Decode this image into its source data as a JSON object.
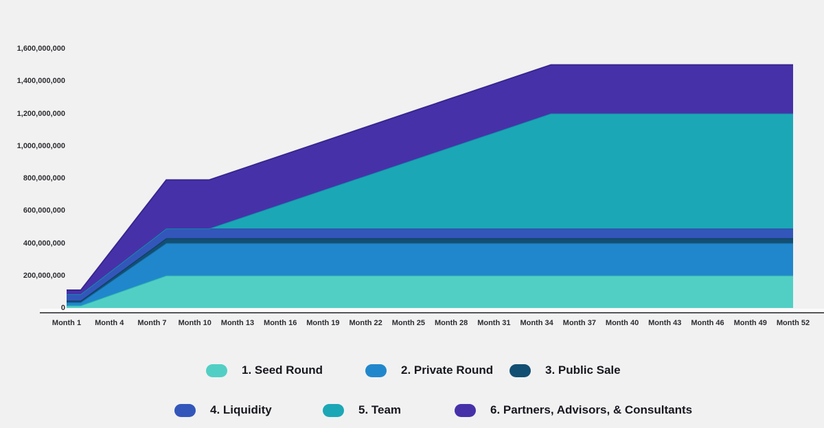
{
  "background_color": "#f1f1f2",
  "chart_data": {
    "type": "area",
    "stacked": true,
    "title": "",
    "xlabel": "",
    "ylabel": "",
    "x_unit": "month",
    "x_range": [
      1,
      52
    ],
    "ylim": [
      0,
      1600000000
    ],
    "grid": false,
    "legend_position": "bottom",
    "x_tick_months": [
      1,
      4,
      7,
      10,
      13,
      16,
      19,
      22,
      25,
      28,
      31,
      34,
      37,
      40,
      43,
      46,
      49,
      52
    ],
    "x_tick_labels": [
      "Month 1",
      "Month 4",
      "Month 7",
      "Month 10",
      "Month 13",
      "Month 16",
      "Month 19",
      "Month 22",
      "Month 25",
      "Month 28",
      "Month 31",
      "Month 34",
      "Month 37",
      "Month 40",
      "Month 43",
      "Month 46",
      "Month 49",
      "Month 52"
    ],
    "y_ticks": [
      {
        "value": 0,
        "label": "0"
      },
      {
        "value": 200000000,
        "label": "200,000,000"
      },
      {
        "value": 400000000,
        "label": "400,000,000"
      },
      {
        "value": 600000000,
        "label": "600,000,000"
      },
      {
        "value": 800000000,
        "label": "800,000,000"
      },
      {
        "value": 1000000000,
        "label": "1,000,000,000"
      },
      {
        "value": 1200000000,
        "label": "1,200,000,000"
      },
      {
        "value": 1400000000,
        "label": "1,400,000,000"
      },
      {
        "value": 1600000000,
        "label": "1,600,000,000"
      }
    ],
    "total_supply": 1500000000,
    "series": [
      {
        "name": "1. Seed Round",
        "total": 200000000,
        "color": "#52cfc4",
        "edge_color": "#2fb9ad",
        "points": [
          [
            1,
            15000000
          ],
          [
            2,
            15000000
          ],
          [
            8,
            200000000
          ],
          [
            52,
            200000000
          ]
        ]
      },
      {
        "name": "2. Private Round",
        "total": 200000000,
        "color": "#2187cc",
        "edge_color": "#1871b2",
        "points": [
          [
            1,
            20000000
          ],
          [
            2,
            20000000
          ],
          [
            8,
            200000000
          ],
          [
            52,
            200000000
          ]
        ]
      },
      {
        "name": "3. Public Sale",
        "total": 30000000,
        "color": "#134f72",
        "edge_color": "#0c3c59",
        "points": [
          [
            1,
            10000000
          ],
          [
            2,
            10000000
          ],
          [
            8,
            30000000
          ],
          [
            52,
            30000000
          ]
        ]
      },
      {
        "name": "4. Liquidity",
        "total": 60000000,
        "color": "#3356bb",
        "edge_color": "#2a47a2",
        "points": [
          [
            1,
            40000000
          ],
          [
            2,
            40000000
          ],
          [
            8,
            60000000
          ],
          [
            52,
            60000000
          ]
        ]
      },
      {
        "name": "5. Team",
        "total": 710000000,
        "color": "#1ca7b6",
        "edge_color": "#0e93a6",
        "points": [
          [
            1,
            0
          ],
          [
            11,
            0
          ],
          [
            35,
            710000000
          ],
          [
            52,
            710000000
          ]
        ]
      },
      {
        "name": "6. Partners, Advisors, & Consultants",
        "total": 300000000,
        "color": "#4731a9",
        "edge_color": "#38268f",
        "points": [
          [
            1,
            25000000
          ],
          [
            2,
            25000000
          ],
          [
            8,
            300000000
          ],
          [
            52,
            300000000
          ]
        ]
      }
    ]
  }
}
